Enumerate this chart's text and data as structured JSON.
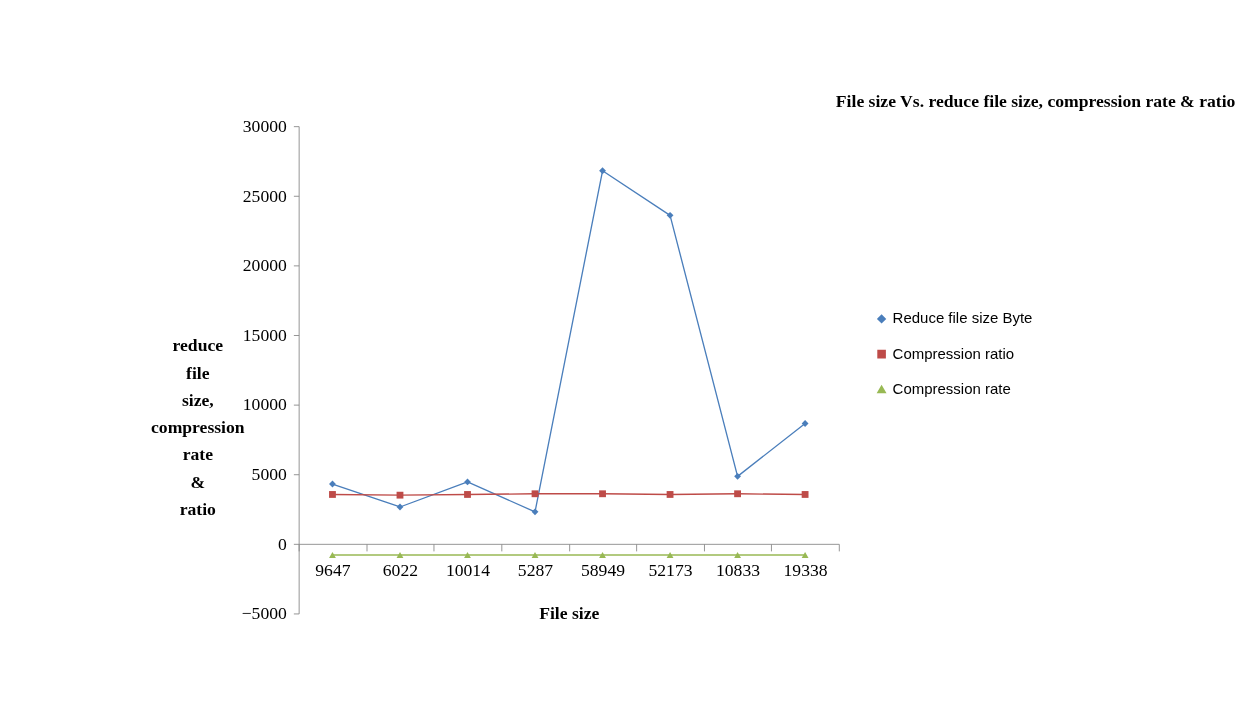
{
  "chart_data": {
    "type": "line",
    "title": "File size Vs. reduce file size, compression rate & ratio",
    "xlabel": "File size",
    "ylabel": "reduce\nfile\nsize,\ncompression\nrate\n&\nratio",
    "categories": [
      "9647",
      "6022",
      "10014",
      "5287",
      "58949",
      "52173",
      "10833",
      "19338"
    ],
    "series": [
      {
        "name": "Reduce file size Byte",
        "color": "#4a7ebb",
        "marker": "diamond",
        "values": [
          4300,
          2650,
          4450,
          2300,
          26800,
          23600,
          4850,
          8650
        ]
      },
      {
        "name": "Compression ratio",
        "color": "#be4b48",
        "marker": "square",
        "values": [
          3550,
          3500,
          3550,
          3600,
          3600,
          3550,
          3600,
          3550
        ]
      },
      {
        "name": "Compression rate",
        "color": "#98b954",
        "marker": "triangle",
        "values": [
          -800,
          -800,
          -800,
          -800,
          -800,
          -800,
          -800,
          -800
        ]
      }
    ],
    "ylim": [
      -5000,
      30000
    ],
    "yticks": [
      -5000,
      0,
      5000,
      10000,
      15000,
      20000,
      25000,
      30000
    ],
    "grid": false,
    "legend": "right",
    "line_style": "solid"
  }
}
